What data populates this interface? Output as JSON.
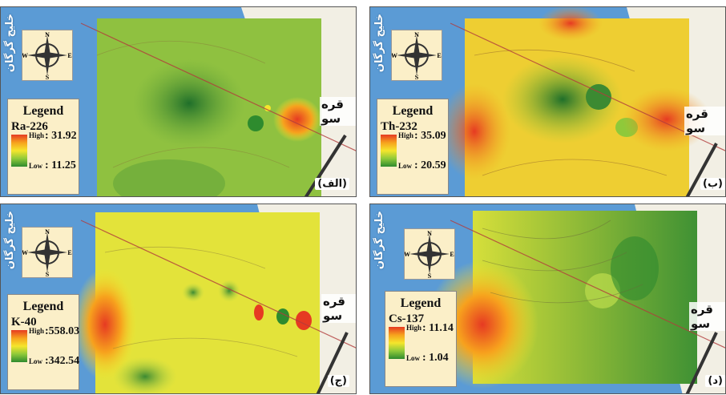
{
  "sea_label": "خلیج گرگان",
  "town_label": "قره سو",
  "legend_title": "Legend",
  "high_label": "High",
  "low_label": "Low",
  "compass_letters": {
    "north": "N",
    "south": "S",
    "east": "E",
    "west": "W"
  },
  "colors": {
    "sea": "#5b9bd5",
    "land": "#f2efe4",
    "high": "#e63a22",
    "mid": "#f5e52c",
    "low": "#2e8b2e"
  },
  "panels": [
    {
      "tag": "(الف)",
      "variable": "Ra-226",
      "high": ": 31.92",
      "low": ": 11.25"
    },
    {
      "tag": "(ب)",
      "variable": "Th-232",
      "high": ": 35.09",
      "low": ": 20.59"
    },
    {
      "tag": "(ج)",
      "variable": "K-40",
      "high": ":558.03",
      "low": ":342.54"
    },
    {
      "tag": "(د)",
      "variable": "Cs-137",
      "high": ": 11.14",
      "low": ":  1.04"
    }
  ]
}
